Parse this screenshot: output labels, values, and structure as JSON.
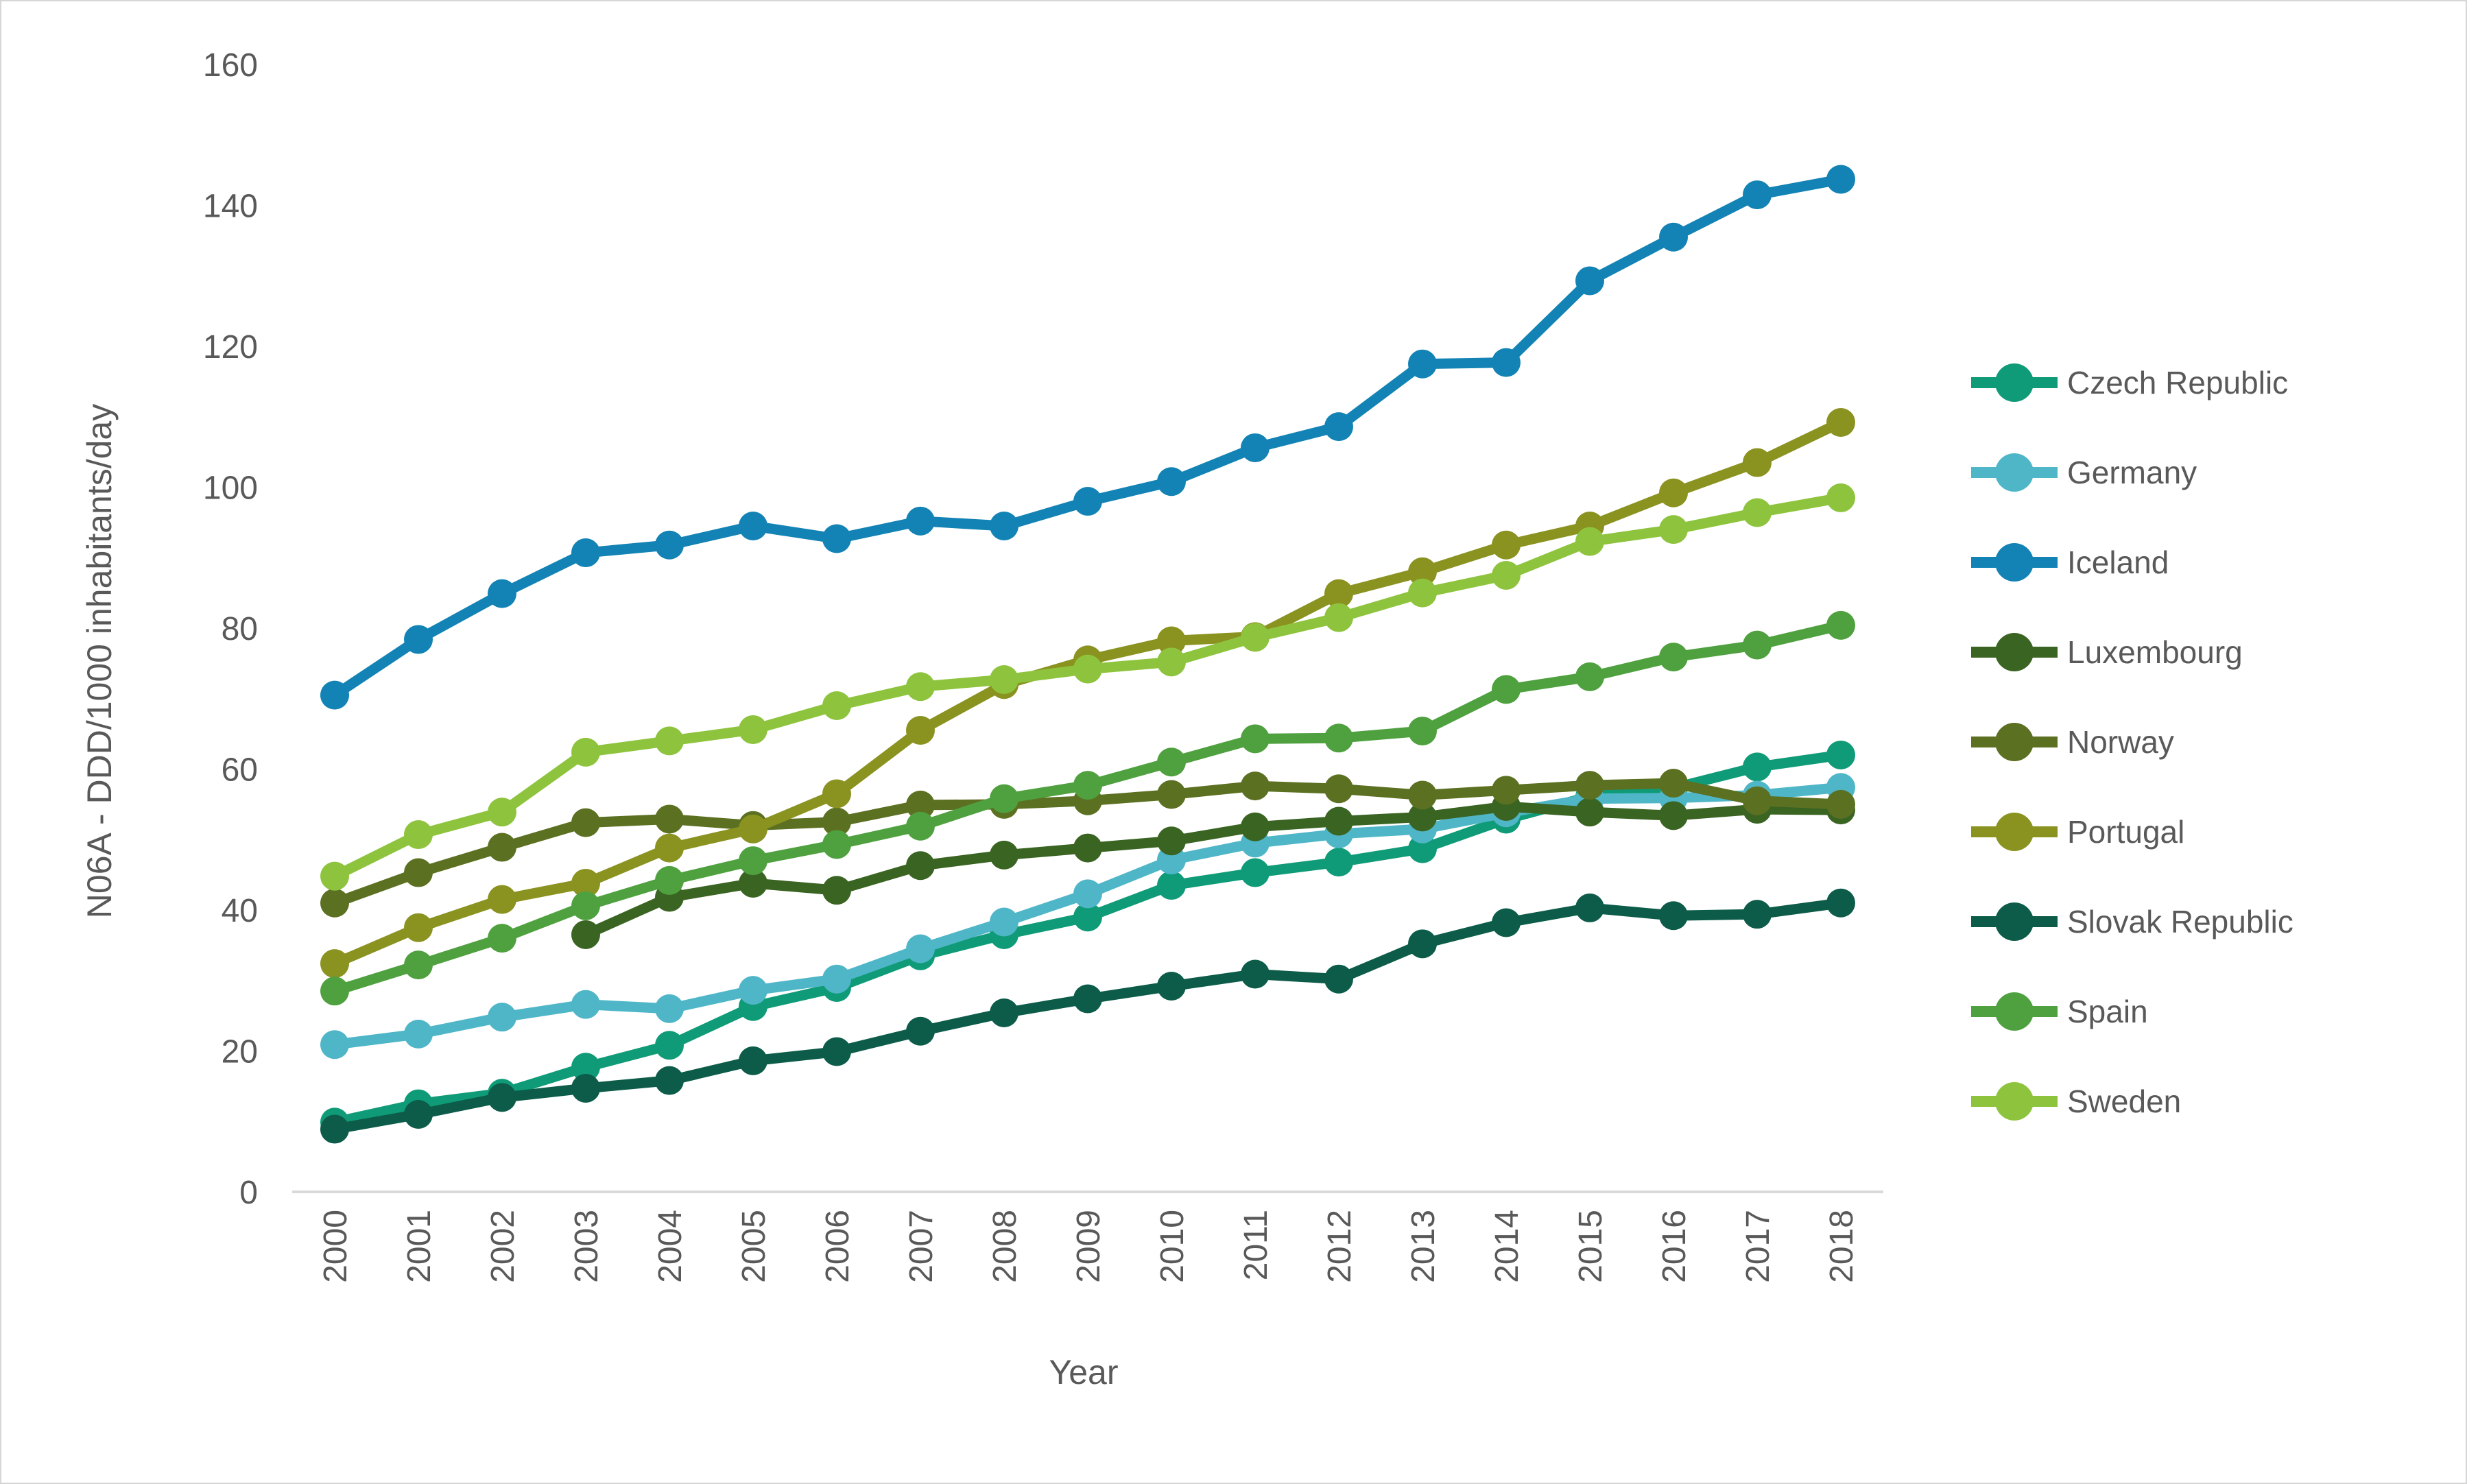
{
  "colors": {
    "text": "#595959",
    "axis_line": "#d9d9d9",
    "background": "#ffffff",
    "border": "#d6d6d6"
  },
  "chart_data": {
    "type": "line",
    "title": "",
    "xlabel": "Year",
    "ylabel": "N06A - DDD/1000 inhabitants/day",
    "x": [
      2000,
      2001,
      2002,
      2003,
      2004,
      2005,
      2006,
      2007,
      2008,
      2009,
      2010,
      2011,
      2012,
      2013,
      2014,
      2015,
      2016,
      2017,
      2018
    ],
    "ylim": [
      0,
      160
    ],
    "yticks": [
      0,
      20,
      40,
      60,
      80,
      100,
      120,
      140,
      160
    ],
    "grid": false,
    "legend_position": "right",
    "marker": "circle",
    "series": [
      {
        "name": "Czech Republic",
        "color": "#0f9b77",
        "values": [
          9.9,
          12.5,
          14.0,
          17.7,
          20.8,
          26.3,
          29.0,
          33.5,
          36.5,
          39.0,
          43.5,
          45.3,
          46.8,
          48.7,
          52.9,
          56.1,
          57.3,
          60.3,
          62.0
        ]
      },
      {
        "name": "Germany",
        "color": "#4fb6c8",
        "values": [
          20.9,
          22.4,
          24.8,
          26.6,
          26.0,
          28.6,
          30.2,
          34.5,
          38.3,
          42.3,
          47.1,
          49.5,
          50.8,
          51.5,
          53.8,
          55.8,
          55.9,
          56.3,
          57.4
        ]
      },
      {
        "name": "Iceland",
        "color": "#1283b4",
        "values": [
          70.5,
          78.4,
          84.9,
          90.7,
          91.8,
          94.5,
          92.7,
          95.2,
          94.5,
          98.0,
          100.8,
          105.6,
          108.6,
          117.5,
          117.7,
          129.3,
          135.5,
          141.5,
          143.7
        ]
      },
      {
        "name": "Luxembourg",
        "color": "#3a6422",
        "values": [
          null,
          null,
          null,
          36.5,
          41.8,
          43.8,
          42.8,
          46.3,
          47.8,
          48.8,
          49.8,
          51.8,
          52.6,
          53.2,
          54.7,
          53.9,
          53.4,
          54.3,
          54.2
        ]
      },
      {
        "name": "Norway",
        "color": "#5c7022",
        "values": [
          41.0,
          45.3,
          48.9,
          52.4,
          52.9,
          52.0,
          52.5,
          54.9,
          55.0,
          55.5,
          56.4,
          57.6,
          57.2,
          56.3,
          57.0,
          57.7,
          58.0,
          55.5,
          55.0
        ]
      },
      {
        "name": "Portugal",
        "color": "#8a9220",
        "values": [
          32.4,
          37.5,
          41.5,
          43.8,
          48.8,
          51.5,
          56.5,
          65.5,
          72.0,
          75.5,
          78.2,
          78.8,
          84.9,
          88.0,
          91.8,
          94.5,
          99.2,
          103.5,
          109.2
        ]
      },
      {
        "name": "Slovak Republic",
        "color": "#0c5c49",
        "values": [
          8.9,
          11.0,
          13.4,
          14.7,
          15.8,
          18.6,
          19.9,
          22.8,
          25.4,
          27.4,
          29.2,
          30.9,
          30.2,
          35.2,
          38.2,
          40.3,
          39.2,
          39.4,
          41.0
        ]
      },
      {
        "name": "Spain",
        "color": "#4fa13f",
        "values": [
          28.5,
          32.2,
          36.0,
          40.6,
          44.2,
          47.0,
          49.3,
          51.9,
          55.8,
          57.7,
          61.0,
          64.3,
          64.4,
          65.4,
          71.3,
          73.1,
          75.9,
          77.6,
          80.4
        ]
      },
      {
        "name": "Sweden",
        "color": "#8ec43d",
        "values": [
          44.8,
          50.7,
          53.9,
          62.4,
          64.0,
          65.6,
          69.0,
          71.7,
          72.7,
          74.2,
          75.2,
          78.7,
          81.5,
          85.0,
          87.5,
          92.3,
          94.0,
          96.4,
          98.5
        ]
      }
    ]
  }
}
